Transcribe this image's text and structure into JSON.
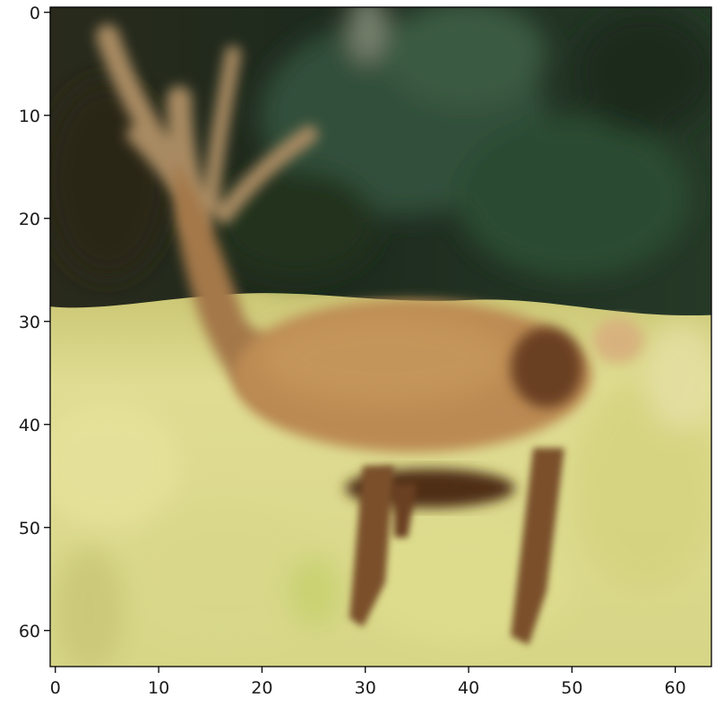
{
  "image": {
    "subject": "deer",
    "source_resolution": [
      64,
      64
    ],
    "display": "upscaled low-resolution photo"
  },
  "axes": {
    "x": {
      "ticks": [
        0,
        10,
        20,
        30,
        40,
        50,
        60
      ],
      "labels": [
        "0",
        "10",
        "20",
        "30",
        "40",
        "50",
        "60"
      ],
      "range": [
        -0.5,
        63.5
      ]
    },
    "y": {
      "ticks": [
        0,
        10,
        20,
        30,
        40,
        50,
        60
      ],
      "labels": [
        "0",
        "10",
        "20",
        "30",
        "40",
        "50",
        "60"
      ],
      "range": [
        -0.5,
        63.5
      ],
      "inverted": true
    },
    "grid": false
  },
  "colors": {
    "sky_forest": "#1f2a1c",
    "foliage": "#2e4630",
    "grass": "#d8d98a",
    "grass_light": "#e2df96",
    "deer_body": "#b5844c",
    "deer_shadow": "#5d3a20",
    "antler": "#a6865e",
    "axis": "#000000"
  }
}
